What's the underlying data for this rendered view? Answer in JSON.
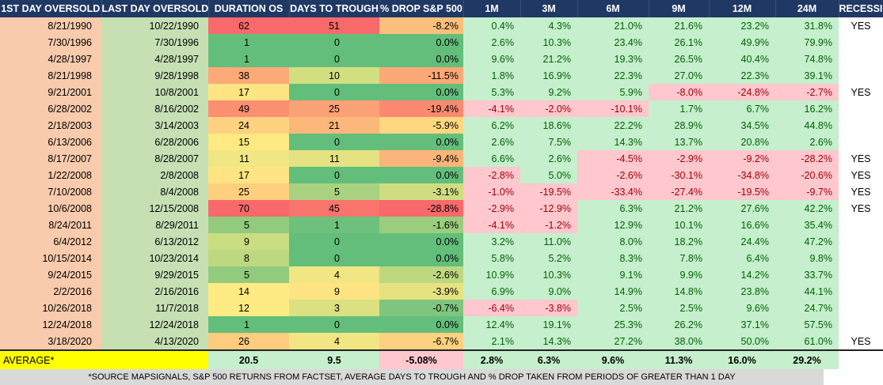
{
  "headers": [
    "1ST DAY OVERSOLD",
    "LAST DAY OVERSOLD",
    "DURATION OS",
    "DAYS TO TROUGH",
    "% DROP S&P 500",
    "1M",
    "3M",
    "6M",
    "9M",
    "12M",
    "24M",
    "RECESSION"
  ],
  "rows": [
    {
      "first": "8/21/1990",
      "last": "10/22/1990",
      "duration": "62",
      "trough": "51",
      "drop": "-8.2%",
      "r1m": "0.4%",
      "r3m": "4.3%",
      "r6m": "21.0%",
      "r9m": "21.6%",
      "r12m": "23.2%",
      "r24m": "31.8%",
      "recession": "YES",
      "c_dur": "#f8696b",
      "c_tro": "#f8696b",
      "c_drop": "#f9bf7b"
    },
    {
      "first": "7/30/1996",
      "last": "7/30/1996",
      "duration": "1",
      "trough": "0",
      "drop": "0.0%",
      "r1m": "2.6%",
      "r3m": "10.3%",
      "r6m": "23.4%",
      "r9m": "26.1%",
      "r12m": "49.9%",
      "r24m": "79.9%",
      "recession": "",
      "c_dur": "#63be7b",
      "c_tro": "#63be7b",
      "c_drop": "#63be7b"
    },
    {
      "first": "4/28/1997",
      "last": "4/28/1997",
      "duration": "1",
      "trough": "0",
      "drop": "0.0%",
      "r1m": "9.6%",
      "r3m": "21.2%",
      "r6m": "19.3%",
      "r9m": "26.5%",
      "r12m": "40.4%",
      "r24m": "74.8%",
      "recession": "",
      "c_dur": "#63be7b",
      "c_tro": "#63be7b",
      "c_drop": "#63be7b"
    },
    {
      "first": "8/21/1998",
      "last": "9/28/1998",
      "duration": "38",
      "trough": "10",
      "drop": "-11.5%",
      "r1m": "1.8%",
      "r3m": "16.9%",
      "r6m": "22.3%",
      "r9m": "27.0%",
      "r12m": "22.3%",
      "r24m": "39.1%",
      "recession": "",
      "c_dur": "#fbaa77",
      "c_tro": "#d2df81",
      "c_drop": "#fba877"
    },
    {
      "first": "9/21/2001",
      "last": "10/8/2001",
      "duration": "17",
      "trough": "0",
      "drop": "0.0%",
      "r1m": "5.3%",
      "r3m": "9.2%",
      "r6m": "5.9%",
      "r9m": "-8.0%",
      "r12m": "-24.8%",
      "r24m": "-2.7%",
      "recession": "YES",
      "c_dur": "#fee482",
      "c_tro": "#63be7b",
      "c_drop": "#63be7b"
    },
    {
      "first": "6/28/2002",
      "last": "8/16/2002",
      "duration": "49",
      "trough": "25",
      "drop": "-19.4%",
      "r1m": "-4.1%",
      "r3m": "-2.0%",
      "r6m": "-10.1%",
      "r9m": "1.7%",
      "r12m": "6.7%",
      "r24m": "16.2%",
      "recession": "",
      "c_dur": "#fa8f72",
      "c_tro": "#fba176",
      "c_drop": "#f98a71"
    },
    {
      "first": "2/18/2003",
      "last": "3/14/2003",
      "duration": "24",
      "trough": "21",
      "drop": "-5.9%",
      "r1m": "6.2%",
      "r3m": "18.6%",
      "r6m": "22.2%",
      "r9m": "28.9%",
      "r12m": "34.5%",
      "r24m": "44.8%",
      "recession": "",
      "c_dur": "#fed280",
      "c_tro": "#fcb77a",
      "c_drop": "#fed780"
    },
    {
      "first": "6/13/2006",
      "last": "6/28/2006",
      "duration": "15",
      "trough": "0",
      "drop": "0.0%",
      "r1m": "2.6%",
      "r3m": "7.5%",
      "r6m": "14.3%",
      "r9m": "13.7%",
      "r12m": "20.8%",
      "r24m": "2.6%",
      "recession": "",
      "c_dur": "#fee983",
      "c_tro": "#63be7b",
      "c_drop": "#63be7b"
    },
    {
      "first": "8/17/2007",
      "last": "8/28/2007",
      "duration": "11",
      "trough": "11",
      "drop": "-9.4%",
      "r1m": "6.6%",
      "r3m": "2.6%",
      "r6m": "-4.5%",
      "r9m": "-2.9%",
      "r12m": "-9.2%",
      "r24m": "-28.2%",
      "recession": "YES",
      "c_dur": "#f0e683",
      "c_tro": "#e5e282",
      "c_drop": "#fbb479"
    },
    {
      "first": "1/22/2008",
      "last": "2/8/2008",
      "duration": "17",
      "trough": "0",
      "drop": "0.0%",
      "r1m": "-2.8%",
      "r3m": "5.0%",
      "r6m": "-2.6%",
      "r9m": "-30.1%",
      "r12m": "-34.8%",
      "r24m": "-20.6%",
      "recession": "YES",
      "c_dur": "#fee482",
      "c_tro": "#63be7b",
      "c_drop": "#63be7b"
    },
    {
      "first": "7/10/2008",
      "last": "8/4/2008",
      "duration": "25",
      "trough": "5",
      "drop": "-3.1%",
      "r1m": "-1.0%",
      "r3m": "-19.5%",
      "r6m": "-33.4%",
      "r9m": "-27.4%",
      "r12m": "-19.5%",
      "r24m": "-9.7%",
      "recession": "YES",
      "c_dur": "#fecf7f",
      "c_tro": "#a8d27f",
      "c_drop": "#cfdd81"
    },
    {
      "first": "10/6/2008",
      "last": "12/15/2008",
      "duration": "70",
      "trough": "45",
      "drop": "-28.8%",
      "r1m": "-2.9%",
      "r3m": "-12.9%",
      "r6m": "6.3%",
      "r9m": "21.2%",
      "r12m": "27.6%",
      "r24m": "42.2%",
      "recession": "YES",
      "c_dur": "#f8696b",
      "c_tro": "#f8746d",
      "c_drop": "#f8696b"
    },
    {
      "first": "8/24/2011",
      "last": "8/29/2011",
      "duration": "5",
      "trough": "1",
      "drop": "-1.6%",
      "r1m": "-4.1%",
      "r3m": "-1.2%",
      "r6m": "12.9%",
      "r9m": "10.1%",
      "r12m": "16.6%",
      "r24m": "35.4%",
      "recession": "",
      "c_dur": "#92ca7e",
      "c_tro": "#6dc17c",
      "c_drop": "#9ccd7e"
    },
    {
      "first": "6/4/2012",
      "last": "6/13/2012",
      "duration": "9",
      "trough": "0",
      "drop": "0.0%",
      "r1m": "3.2%",
      "r3m": "11.0%",
      "r6m": "8.0%",
      "r9m": "18.2%",
      "r12m": "24.4%",
      "r24m": "47.2%",
      "recession": "",
      "c_dur": "#cbdd81",
      "c_tro": "#63be7b",
      "c_drop": "#63be7b"
    },
    {
      "first": "10/15/2014",
      "last": "10/23/2014",
      "duration": "8",
      "trough": "0",
      "drop": "0.0%",
      "r1m": "5.8%",
      "r3m": "5.2%",
      "r6m": "8.3%",
      "r9m": "7.8%",
      "r12m": "6.4%",
      "r24m": "9.8%",
      "recession": "",
      "c_dur": "#bed880",
      "c_tro": "#63be7b",
      "c_drop": "#63be7b"
    },
    {
      "first": "9/24/2015",
      "last": "9/29/2015",
      "duration": "5",
      "trough": "4",
      "drop": "-2.6%",
      "r1m": "10.9%",
      "r3m": "10.3%",
      "r6m": "9.1%",
      "r9m": "9.9%",
      "r12m": "14.2%",
      "r24m": "33.7%",
      "recession": "",
      "c_dur": "#92ca7e",
      "c_tro": "#f1e683",
      "c_drop": "#bdd880"
    },
    {
      "first": "2/2/2016",
      "last": "2/16/2016",
      "duration": "14",
      "trough": "9",
      "drop": "-3.9%",
      "r1m": "6.9%",
      "r3m": "9.0%",
      "r6m": "14.9%",
      "r9m": "14.8%",
      "r12m": "23.8%",
      "r24m": "44.1%",
      "recession": "",
      "c_dur": "#feeb84",
      "c_tro": "#fee482",
      "c_drop": "#e6e282"
    },
    {
      "first": "10/26/2018",
      "last": "11/7/2018",
      "duration": "12",
      "trough": "3",
      "drop": "-0.7%",
      "r1m": "-6.4%",
      "r3m": "-3.8%",
      "r6m": "2.5%",
      "r9m": "2.5%",
      "r12m": "9.6%",
      "r24m": "24.7%",
      "recession": "",
      "c_dur": "#fdeb84",
      "c_tro": "#dbe081",
      "c_drop": "#7fc57d"
    },
    {
      "first": "12/24/2018",
      "last": "12/24/2018",
      "duration": "1",
      "trough": "0",
      "drop": "0.0%",
      "r1m": "12.4%",
      "r3m": "19.1%",
      "r6m": "25.3%",
      "r9m": "26.2%",
      "r12m": "37.1%",
      "r24m": "57.5%",
      "recession": "",
      "c_dur": "#63be7b",
      "c_tro": "#63be7b",
      "c_drop": "#63be7b"
    },
    {
      "first": "3/18/2020",
      "last": "4/13/2020",
      "duration": "26",
      "trough": "4",
      "drop": "-6.7%",
      "r1m": "2.1%",
      "r3m": "14.3%",
      "r6m": "27.2%",
      "r9m": "38.0%",
      "r12m": "50.0%",
      "r24m": "61.0%",
      "recession": "YES",
      "c_dur": "#fecc7f",
      "c_tro": "#f1e683",
      "c_drop": "#fdd17f"
    }
  ],
  "average": {
    "label": "AVERAGE*",
    "duration": "20.5",
    "trough": "9.5",
    "drop": "-5.08%",
    "r1m": "2.8%",
    "r3m": "6.3%",
    "r6m": "9.6%",
    "r9m": "11.3%",
    "r12m": "16.0%",
    "r24m": "29.2%"
  },
  "footnote": "*SOURCE MAPSIGNALS, S&P 500 RETURNS FROM FACTSET, AVERAGE DAYS TO TROUGH AND % DROP TAKEN FROM PERIODS OF GREATER THAN 1 DAY",
  "colors": {
    "header_bg": "#1f3864",
    "first_col": "#f8cbad",
    "second_col": "#c6e0b4",
    "pos_bg": "#c6efce",
    "pos_text": "#006100",
    "neg_bg": "#ffc7ce",
    "neg_text": "#9c0006",
    "avg_label_bg": "#ffff00",
    "footnote_bg": "#d9d9d9"
  }
}
